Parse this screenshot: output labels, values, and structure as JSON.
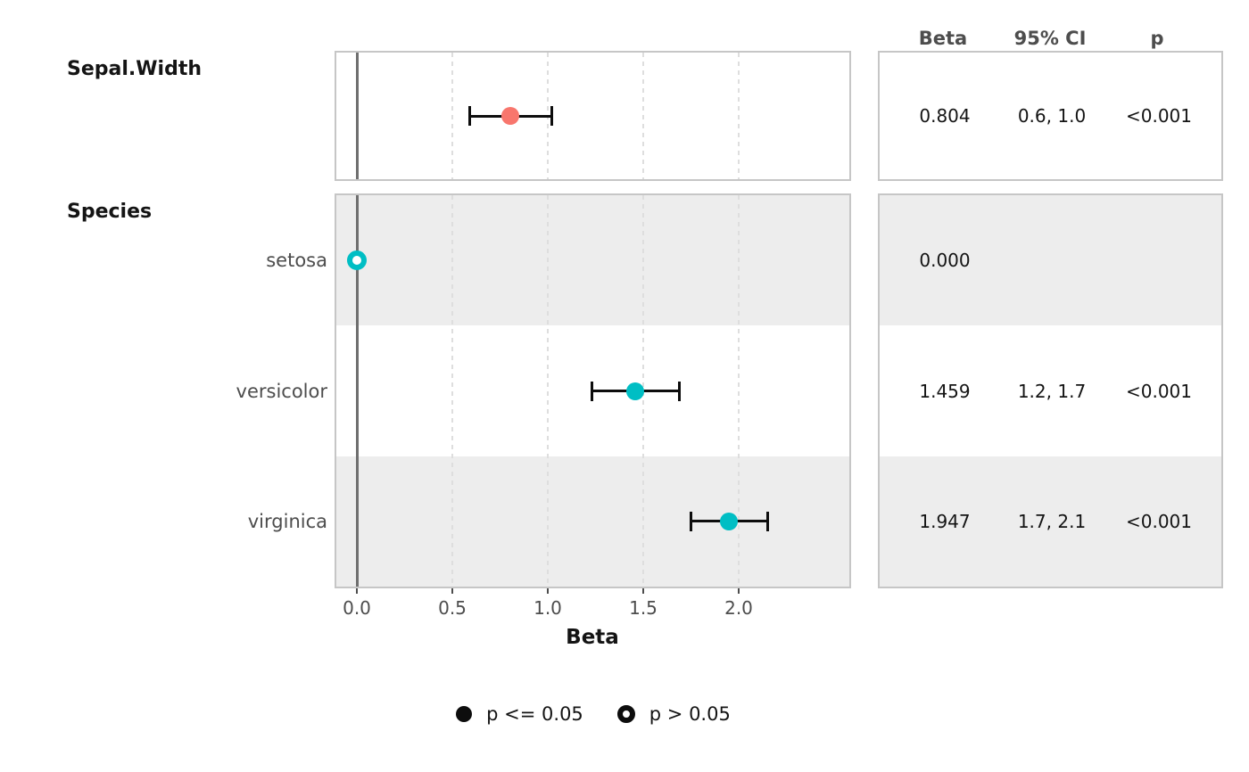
{
  "chart_data": {
    "type": "scatter",
    "subtype": "forest-plot-with-table",
    "xlabel": "Beta",
    "xlim": [
      -0.107,
      2.598
    ],
    "x_ticks": [
      {
        "value": 0.0,
        "label": "0.0"
      },
      {
        "value": 0.5,
        "label": "0.5"
      },
      {
        "value": 1.0,
        "label": "1.0"
      },
      {
        "value": 1.5,
        "label": "1.5"
      },
      {
        "value": 2.0,
        "label": "2.0"
      }
    ],
    "gridline_values": [
      0.5,
      1.0,
      1.5,
      2.0
    ],
    "reference_line": 0.0,
    "grid": "dashed-vertical",
    "legend_position": "bottom",
    "table_headers": [
      {
        "label": "Beta"
      },
      {
        "label": "95% CI"
      },
      {
        "label": "p"
      }
    ],
    "groups": [
      {
        "label": "Sepal.Width",
        "rows": [
          {
            "label": "",
            "beta": 0.804,
            "ci_lo": 0.59,
            "ci_hi": 1.02,
            "point": "filled",
            "color": "#F8766D",
            "striped": false,
            "cells": {
              "beta": "0.804",
              "ci": "0.6, 1.0",
              "p": "<0.001"
            }
          }
        ]
      },
      {
        "label": "Species",
        "rows": [
          {
            "label": "setosa",
            "beta": 0.0,
            "ci_lo": null,
            "ci_hi": null,
            "point": "open",
            "color": "#00BEC4",
            "striped": true,
            "cells": {
              "beta": "0.000",
              "ci": "",
              "p": ""
            }
          },
          {
            "label": "versicolor",
            "beta": 1.459,
            "ci_lo": 1.23,
            "ci_hi": 1.69,
            "point": "filled",
            "color": "#00BEC4",
            "striped": false,
            "cells": {
              "beta": "1.459",
              "ci": "1.2, 1.7",
              "p": "<0.001"
            }
          },
          {
            "label": "virginica",
            "beta": 1.947,
            "ci_lo": 1.75,
            "ci_hi": 2.15,
            "point": "filled",
            "color": "#00BEC4",
            "striped": true,
            "cells": {
              "beta": "1.947",
              "ci": "1.7, 2.1",
              "p": "<0.001"
            }
          }
        ]
      }
    ],
    "legend": [
      {
        "marker": "filled",
        "label": "p <= 0.05"
      },
      {
        "marker": "open",
        "label": "p > 0.05"
      }
    ]
  },
  "colors": {
    "sepal_width_point": "#F8766D",
    "species_point": "#00BEC4",
    "errorbar": "#0d0d0d",
    "reference_line": "#6f6f6f",
    "gridline": "#dedede",
    "stripe": "#ededed",
    "panel_border": "#c6c6c6",
    "muted_text": "#4d4d4d"
  }
}
